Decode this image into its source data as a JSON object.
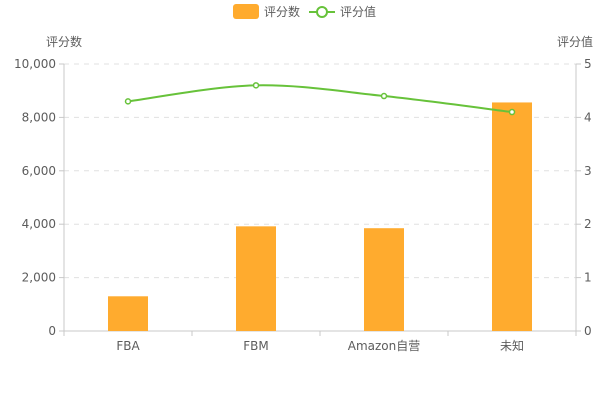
{
  "chart_data": {
    "type": "bar",
    "categories": [
      "FBA",
      "FBM",
      "Amazon自营",
      "未知"
    ],
    "series": [
      {
        "name": "评分数",
        "type": "bar",
        "axis": "left",
        "values": [
          1300,
          3920,
          3850,
          8560
        ]
      },
      {
        "name": "评分值",
        "type": "line",
        "axis": "right",
        "values": [
          4.3,
          4.6,
          4.4,
          4.1
        ]
      }
    ],
    "y_left": {
      "label": "评分数",
      "range": [
        0,
        10000
      ],
      "ticks": [
        "0",
        "2,000",
        "4,000",
        "6,000",
        "8,000",
        "10,000"
      ]
    },
    "y_right": {
      "label": "评分值",
      "range": [
        0,
        5
      ],
      "ticks": [
        "0",
        "1",
        "2",
        "3",
        "4",
        "5"
      ]
    },
    "legend_position": "top-center",
    "grid": "horizontal-dashed",
    "colors": {
      "bar": "#ffab2e",
      "line": "#67c23a",
      "axis": "#c8c8c8",
      "grid": "#e0e0e0",
      "text": "#5c5c5c"
    }
  }
}
